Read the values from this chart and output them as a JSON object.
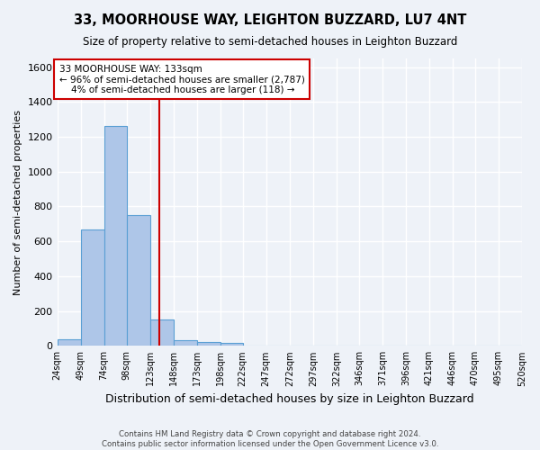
{
  "title_line1": "33, MOORHOUSE WAY, LEIGHTON BUZZARD, LU7 4NT",
  "title_line2": "Size of property relative to semi-detached houses in Leighton Buzzard",
  "xlabel": "Distribution of semi-detached houses by size in Leighton Buzzard",
  "ylabel": "Number of semi-detached properties",
  "footer": "Contains HM Land Registry data © Crown copyright and database right 2024.\nContains public sector information licensed under the Open Government Licence v3.0.",
  "bin_labels": [
    "24sqm",
    "49sqm",
    "74sqm",
    "98sqm",
    "123sqm",
    "148sqm",
    "173sqm",
    "198sqm",
    "222sqm",
    "247sqm",
    "272sqm",
    "297sqm",
    "322sqm",
    "346sqm",
    "371sqm",
    "396sqm",
    "421sqm",
    "446sqm",
    "470sqm",
    "495sqm",
    "520sqm"
  ],
  "bar_values": [
    40,
    670,
    1260,
    750,
    150,
    35,
    20,
    15,
    0,
    0,
    0,
    0,
    0,
    0,
    0,
    0,
    0,
    0,
    0,
    0
  ],
  "bar_color": "#aec6e8",
  "bar_edge_color": "#5a9fd4",
  "property_line_x": 133,
  "property_line_color": "#cc0000",
  "annotation_text": "33 MOORHOUSE WAY: 133sqm\n← 96% of semi-detached houses are smaller (2,787)\n    4% of semi-detached houses are larger (118) →",
  "annotation_box_color": "#ffffff",
  "annotation_box_edge": "#cc0000",
  "ylim": [
    0,
    1650
  ],
  "background_color": "#eef2f8",
  "plot_bg_color": "#eef2f8",
  "grid_color": "#ffffff",
  "bin_edges": [
    24,
    49,
    74,
    98,
    123,
    148,
    173,
    198,
    222,
    247,
    272,
    297,
    322,
    346,
    371,
    396,
    421,
    446,
    470,
    495,
    520
  ]
}
